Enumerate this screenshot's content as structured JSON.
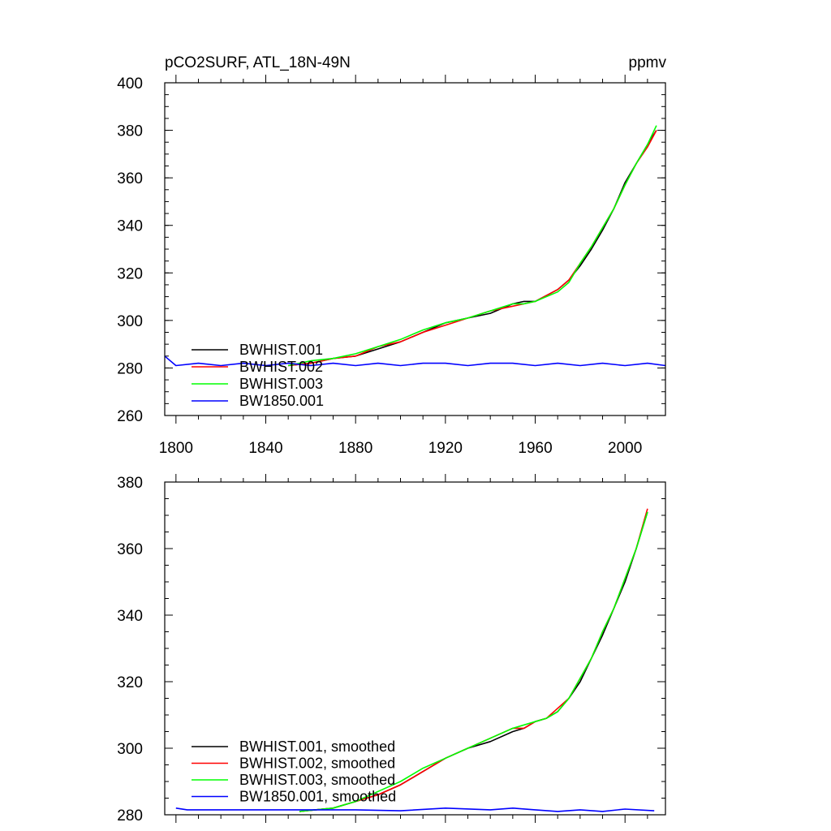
{
  "chart_data": [
    {
      "type": "line",
      "title": "pCO2SURF, ATL_18N-49N",
      "units": "ppmv",
      "xlabel": "",
      "ylabel": "",
      "xlim": [
        1795,
        2018
      ],
      "ylim": [
        260,
        400
      ],
      "xticks": [
        1800,
        1840,
        1880,
        1920,
        1960,
        2000
      ],
      "xtick_labels": [
        "1800",
        "1840",
        "1880",
        "1920",
        "1960",
        "2000"
      ],
      "yticks": [
        260,
        280,
        300,
        320,
        340,
        360,
        380,
        400
      ],
      "ytick_labels": [
        "260",
        "280",
        "300",
        "320",
        "340",
        "360",
        "380",
        "400"
      ],
      "legend_position": "bottom-left",
      "grid": false,
      "series": [
        {
          "name": "BWHIST.001",
          "color": "#000000",
          "x": [
            1850,
            1860,
            1870,
            1880,
            1890,
            1900,
            1910,
            1920,
            1930,
            1940,
            1950,
            1955,
            1960,
            1970,
            1975,
            1980,
            1985,
            1990,
            1995,
            2000,
            2005,
            2010,
            2014
          ],
          "y": [
            281,
            282,
            284,
            285,
            288,
            291,
            295,
            299,
            301,
            303,
            307,
            308,
            308,
            313,
            317,
            323,
            330,
            338,
            347,
            358,
            366,
            374,
            380
          ]
        },
        {
          "name": "BWHIST.002",
          "color": "#ff0000",
          "x": [
            1850,
            1860,
            1870,
            1880,
            1890,
            1900,
            1910,
            1920,
            1930,
            1940,
            1950,
            1955,
            1960,
            1970,
            1975,
            1980,
            1985,
            1990,
            1995,
            2000,
            2005,
            2010,
            2014
          ],
          "y": [
            281,
            282,
            284,
            285,
            289,
            291,
            295,
            298,
            301,
            304,
            306,
            307,
            308,
            313,
            317,
            324,
            331,
            339,
            347,
            357,
            366,
            373,
            380
          ]
        },
        {
          "name": "BWHIST.003",
          "color": "#00ff00",
          "x": [
            1850,
            1860,
            1870,
            1880,
            1890,
            1900,
            1910,
            1920,
            1930,
            1940,
            1950,
            1955,
            1960,
            1970,
            1975,
            1980,
            1985,
            1990,
            1995,
            2000,
            2005,
            2010,
            2014
          ],
          "y": [
            281,
            283,
            284,
            286,
            289,
            292,
            296,
            299,
            301,
            304,
            307,
            307,
            308,
            312,
            316,
            324,
            331,
            339,
            347,
            357,
            366,
            374,
            382
          ]
        },
        {
          "name": "BW1850.001",
          "color": "#0000ff",
          "x": [
            1795,
            1800,
            1810,
            1820,
            1830,
            1840,
            1850,
            1860,
            1870,
            1880,
            1890,
            1900,
            1910,
            1920,
            1930,
            1940,
            1950,
            1960,
            1970,
            1980,
            1990,
            2000,
            2010,
            2018
          ],
          "y": [
            285,
            281,
            282,
            281,
            282,
            281,
            282,
            281,
            282,
            281,
            282,
            281,
            282,
            282,
            281,
            282,
            282,
            281,
            282,
            281,
            282,
            281,
            282,
            281
          ]
        }
      ]
    },
    {
      "type": "line",
      "title": "",
      "xlabel": "",
      "ylabel": "",
      "xlim": [
        1795,
        2018
      ],
      "ylim": [
        280,
        380
      ],
      "xticks": [
        1800,
        1840,
        1880,
        1920,
        1960,
        2000
      ],
      "yticks": [
        280,
        300,
        320,
        340,
        360,
        380
      ],
      "ytick_labels": [
        "280",
        "300",
        "320",
        "340",
        "360",
        "380"
      ],
      "legend_position": "bottom-left",
      "grid": false,
      "series": [
        {
          "name": "BWHIST.001, smoothed",
          "color": "#000000",
          "x": [
            1855,
            1870,
            1880,
            1890,
            1900,
            1910,
            1920,
            1930,
            1940,
            1950,
            1955,
            1960,
            1965,
            1970,
            1975,
            1980,
            1985,
            1990,
            1995,
            2000,
            2005,
            2010
          ],
          "y": [
            281,
            282,
            284,
            286,
            289,
            293,
            297,
            300,
            302,
            305,
            306,
            308,
            309,
            311,
            315,
            320,
            327,
            334,
            342,
            350,
            360,
            371
          ]
        },
        {
          "name": "BWHIST.002, smoothed",
          "color": "#ff0000",
          "x": [
            1855,
            1870,
            1880,
            1890,
            1900,
            1910,
            1920,
            1930,
            1940,
            1950,
            1955,
            1960,
            1965,
            1970,
            1975,
            1980,
            1985,
            1990,
            1995,
            2000,
            2005,
            2010
          ],
          "y": [
            281,
            282,
            284,
            286,
            289,
            293,
            297,
            300,
            303,
            306,
            306,
            308,
            309,
            312,
            315,
            321,
            327,
            335,
            342,
            351,
            360,
            372
          ]
        },
        {
          "name": "BWHIST.003, smoothed",
          "color": "#00ff00",
          "x": [
            1855,
            1870,
            1880,
            1890,
            1900,
            1910,
            1920,
            1930,
            1940,
            1950,
            1955,
            1960,
            1965,
            1970,
            1975,
            1980,
            1985,
            1990,
            1995,
            2000,
            2005,
            2010
          ],
          "y": [
            281,
            282,
            284,
            287,
            290,
            294,
            297,
            300,
            303,
            306,
            307,
            308,
            309,
            311,
            315,
            321,
            327,
            335,
            342,
            351,
            360,
            371
          ]
        },
        {
          "name": "BW1850.001, smoothed",
          "color": "#0000ff",
          "x": [
            1800,
            1805,
            1820,
            1840,
            1860,
            1880,
            1900,
            1920,
            1940,
            1950,
            1960,
            1970,
            1980,
            1990,
            2000,
            2013
          ],
          "y": [
            282,
            281.5,
            281.5,
            281.5,
            281.5,
            281.5,
            281.2,
            282,
            281.5,
            282,
            281.5,
            281,
            281.5,
            281,
            281.7,
            281.2
          ]
        }
      ]
    }
  ]
}
